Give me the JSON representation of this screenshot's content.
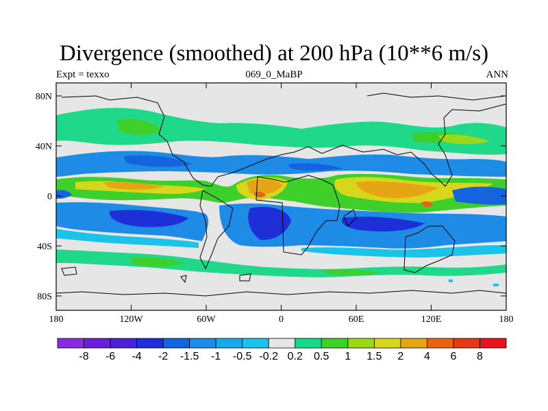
{
  "title": "Divergence (smoothed) at 200 hPa (10**6 m/s)",
  "subtitle_left": "Expt = texxo",
  "subtitle_center": "069_0_MaBP",
  "subtitle_right": "ANN",
  "y_ticks": [
    "80N",
    "40N",
    "0",
    "40S",
    "80S"
  ],
  "x_ticks": [
    "180",
    "120W",
    "60W",
    "0",
    "60E",
    "120E",
    "180"
  ],
  "colorbar": {
    "labels": [
      "-8",
      "-6",
      "-4",
      "-2",
      "-1.5",
      "-1",
      "-0.5",
      "-0.2",
      "0.2",
      "0.5",
      "1",
      "1.5",
      "2",
      "4",
      "6",
      "8"
    ],
    "colors": [
      "#8a2be2",
      "#6a1ed8",
      "#4b22d6",
      "#1f2fd8",
      "#1464e0",
      "#1e8be6",
      "#19a9e6",
      "#1bc3e8",
      "#e6e6e6",
      "#17d88a",
      "#3ecf2a",
      "#9ad81a",
      "#d6d61c",
      "#e6a514",
      "#e66414",
      "#e63814",
      "#e6141e"
    ]
  }
}
